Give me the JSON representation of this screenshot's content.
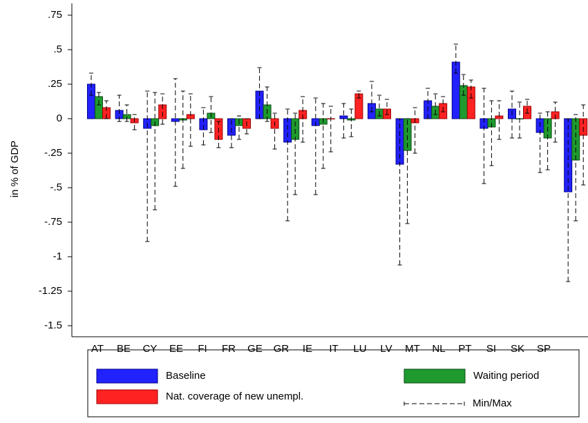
{
  "chart_data": {
    "type": "bar",
    "y_label": "in % of GDP",
    "categories": [
      "AT",
      "BE",
      "CY",
      "EE",
      "FI",
      "FR",
      "GE",
      "GR",
      "IE",
      "IT",
      "LU",
      "LV",
      "MT",
      "NL",
      "PT",
      "SI",
      "SK",
      "SP"
    ],
    "series": [
      {
        "name": "Baseline",
        "color": "#2222ff",
        "values": [
          0.25,
          0.06,
          -0.07,
          -0.02,
          -0.08,
          -0.12,
          0.2,
          -0.17,
          -0.05,
          0.02,
          0.11,
          -0.33,
          0.13,
          0.41,
          -0.07,
          0.07,
          -0.1,
          -0.53
        ],
        "min": [
          0.17,
          -0.02,
          -0.89,
          -0.49,
          -0.19,
          -0.21,
          0.0,
          -0.74,
          -0.55,
          -0.14,
          0.05,
          -1.06,
          0.0,
          0.33,
          -0.47,
          -0.14,
          -0.39,
          -1.18
        ],
        "max": [
          0.33,
          0.17,
          0.2,
          0.29,
          0.08,
          0.0,
          0.37,
          0.07,
          0.15,
          0.11,
          0.27,
          0.0,
          0.22,
          0.54,
          0.22,
          0.2,
          0.04,
          0.0
        ]
      },
      {
        "name": "Waiting period",
        "color": "#1f9a2f",
        "values": [
          0.16,
          0.03,
          -0.05,
          -0.01,
          0.04,
          -0.05,
          0.1,
          -0.15,
          -0.04,
          -0.01,
          0.07,
          -0.23,
          0.09,
          0.24,
          -0.06,
          0.0,
          -0.14,
          -0.3
        ],
        "min": [
          0.1,
          -0.02,
          -0.66,
          -0.36,
          -0.1,
          -0.15,
          -0.02,
          -0.55,
          -0.36,
          -0.13,
          0.02,
          -0.76,
          0.03,
          0.17,
          -0.34,
          -0.14,
          -0.37,
          -0.74
        ],
        "max": [
          0.19,
          0.1,
          0.19,
          0.2,
          0.16,
          0.02,
          0.23,
          0.04,
          0.11,
          0.07,
          0.17,
          0.0,
          0.18,
          0.32,
          0.13,
          0.12,
          0.05,
          0.03
        ]
      },
      {
        "name": "Nat. coverage of new unempl.",
        "color": "#ff2222",
        "values": [
          0.08,
          -0.03,
          0.1,
          0.03,
          -0.15,
          -0.07,
          -0.07,
          0.06,
          0.0,
          0.18,
          0.07,
          -0.03,
          0.11,
          0.23,
          0.02,
          0.09,
          0.05,
          -0.12
        ],
        "min": [
          0.0,
          -0.08,
          -0.04,
          -0.2,
          -0.21,
          -0.11,
          -0.22,
          -0.17,
          -0.24,
          0.15,
          0.03,
          -0.25,
          0.05,
          0.15,
          -0.15,
          0.04,
          -0.17,
          -0.48
        ],
        "max": [
          0.13,
          0.03,
          0.18,
          0.18,
          -0.02,
          0.0,
          0.04,
          0.16,
          0.09,
          0.2,
          0.14,
          0.08,
          0.16,
          0.28,
          0.13,
          0.14,
          0.12,
          0.1
        ]
      }
    ],
    "errorbar_label": "Min/Max",
    "ylim": [
      -1.58,
      0.835
    ],
    "yticks": [
      {
        "value": 0.75,
        "label": ".75"
      },
      {
        "value": 0.5,
        "label": ".5"
      },
      {
        "value": 0.25,
        "label": ".25"
      },
      0,
      {
        "value": -0.25,
        "label": "-.25"
      },
      {
        "value": -0.5,
        "label": "-.5"
      },
      {
        "value": -0.75,
        "label": "-.75"
      },
      -1,
      {
        "value": -1.25,
        "label": "-1.25"
      },
      {
        "value": -1.5,
        "label": "-1.5"
      }
    ]
  }
}
